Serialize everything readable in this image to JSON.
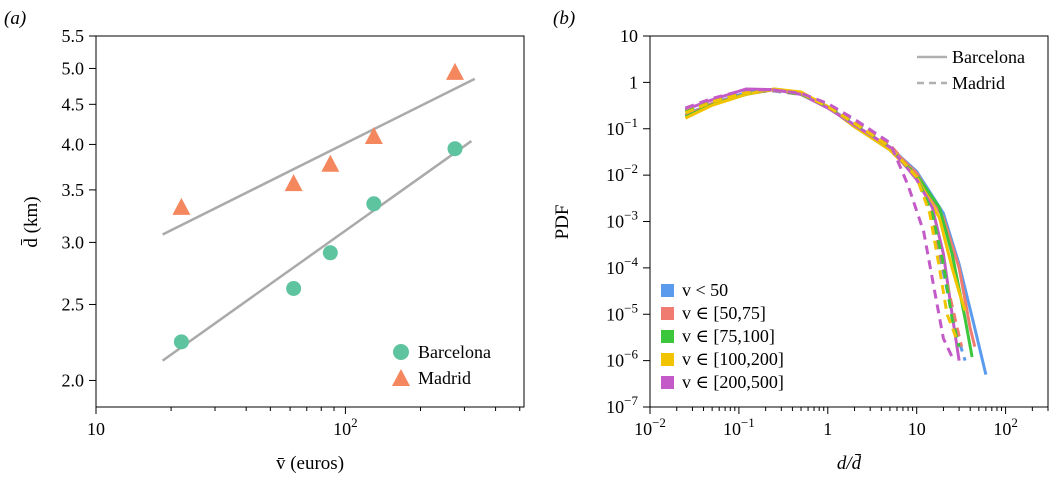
{
  "chart_data": [
    {
      "panel_label": "(a)",
      "type": "scatter",
      "xlabel": "v̄ (euros)",
      "ylabel": "d̄ (km)",
      "xscale": "log",
      "yscale": "log",
      "xlim": [
        10,
        520
      ],
      "ylim": [
        1.85,
        5.5
      ],
      "xticks": [
        10,
        100
      ],
      "xticklabels": [
        "10",
        "10²"
      ],
      "yticks": [
        2.0,
        2.5,
        3.0,
        3.5,
        4.0,
        4.5,
        5.0,
        5.5
      ],
      "yticklabels": [
        "2.0",
        "2.5",
        "3.0",
        "3.5",
        "4.0",
        "4.5",
        "5.0",
        "5.5"
      ],
      "legend_position": "bottom-right",
      "series": [
        {
          "name": "Barcelona",
          "marker": "circle",
          "color": "#5ec4a0",
          "x": [
            22,
            62,
            87,
            130,
            275
          ],
          "y": [
            2.24,
            2.62,
            2.91,
            3.36,
            3.95
          ],
          "fit_x": [
            18.5,
            320
          ],
          "fit_y": [
            2.12,
            4.04
          ]
        },
        {
          "name": "Madrid",
          "marker": "triangle",
          "color": "#f5875e",
          "x": [
            22,
            62,
            87,
            130,
            275
          ],
          "y": [
            3.33,
            3.57,
            3.78,
            4.1,
            4.95
          ],
          "fit_x": [
            18.5,
            330
          ],
          "fit_y": [
            3.07,
            4.85
          ]
        }
      ],
      "fit_color": "#aaaaaa"
    },
    {
      "panel_label": "(b)",
      "type": "line",
      "xlabel": "d/d̄",
      "ylabel": "PDF",
      "xscale": "log",
      "yscale": "log",
      "xlim": [
        0.01,
        300
      ],
      "ylim": [
        1e-07,
        10
      ],
      "xtick_labels": [
        {
          "value": 0.01,
          "base": "10",
          "exp": "−2"
        },
        {
          "value": 0.1,
          "base": "10",
          "exp": "−1"
        },
        {
          "value": 1,
          "base": "1",
          "exp": ""
        },
        {
          "value": 10,
          "base": "10",
          "exp": ""
        },
        {
          "value": 100,
          "base": "10",
          "exp": "2"
        }
      ],
      "ytick_labels": [
        {
          "value": 10,
          "base": "10",
          "exp": ""
        },
        {
          "value": 1,
          "base": "1",
          "exp": ""
        },
        {
          "value": 0.1,
          "base": "10",
          "exp": "−1"
        },
        {
          "value": 0.01,
          "base": "10",
          "exp": "−2"
        },
        {
          "value": 0.001,
          "base": "10",
          "exp": "−3"
        },
        {
          "value": 0.0001,
          "base": "10",
          "exp": "−4"
        },
        {
          "value": 1e-05,
          "base": "10",
          "exp": "−5"
        },
        {
          "value": 1e-06,
          "base": "10",
          "exp": "−6"
        },
        {
          "value": 1e-07,
          "base": "10",
          "exp": "−7"
        }
      ],
      "style_legend": [
        {
          "name": "Barcelona",
          "dash": "solid"
        },
        {
          "name": "Madrid",
          "dash": "dashed"
        }
      ],
      "color_legend_position": "bottom-left",
      "style_legend_position": "top-right",
      "series": [
        {
          "name": "v < 50",
          "color": "#5b9bed",
          "barcelona": {
            "x": [
              0.025,
              0.05,
              0.12,
              0.25,
              0.5,
              1,
              2,
              5,
              10,
              20,
              30,
              45,
              60
            ],
            "y": [
              0.2,
              0.35,
              0.6,
              0.7,
              0.55,
              0.3,
              0.12,
              0.04,
              0.012,
              0.0015,
              0.00012,
              5e-06,
              5e-07
            ]
          },
          "madrid": {
            "x": [
              0.025,
              0.05,
              0.12,
              0.25,
              0.5,
              1,
              2,
              5,
              10,
              15,
              20,
              27,
              35
            ],
            "y": [
              0.25,
              0.4,
              0.65,
              0.65,
              0.55,
              0.32,
              0.15,
              0.045,
              0.009,
              0.0012,
              8e-05,
              5e-06,
              1e-06
            ]
          }
        },
        {
          "name": "v ∈ [50,75]",
          "color": "#f07b70",
          "barcelona": {
            "x": [
              0.025,
              0.05,
              0.12,
              0.25,
              0.5,
              1,
              2,
              5,
              10,
              20,
              30,
              40,
              45
            ],
            "y": [
              0.19,
              0.35,
              0.55,
              0.7,
              0.6,
              0.3,
              0.11,
              0.04,
              0.011,
              0.0012,
              0.0001,
              5e-06,
              2e-06
            ]
          },
          "madrid": {
            "x": [
              0.025,
              0.05,
              0.12,
              0.25,
              0.5,
              1,
              2,
              5,
              10,
              15,
              20,
              28,
              32
            ],
            "y": [
              0.24,
              0.4,
              0.62,
              0.66,
              0.55,
              0.31,
              0.14,
              0.045,
              0.01,
              0.0013,
              0.0001,
              6e-06,
              2e-06
            ]
          }
        },
        {
          "name": "v ∈ [75,100]",
          "color": "#3cc63c",
          "barcelona": {
            "x": [
              0.025,
              0.05,
              0.12,
              0.25,
              0.5,
              1,
              2,
              5,
              10,
              18,
              25,
              35,
              42
            ],
            "y": [
              0.18,
              0.33,
              0.55,
              0.72,
              0.6,
              0.3,
              0.11,
              0.035,
              0.01,
              0.002,
              0.0002,
              8e-06,
              1.2e-06
            ]
          },
          "madrid": {
            "x": [
              0.025,
              0.05,
              0.12,
              0.25,
              0.5,
              1,
              2,
              5,
              10,
              15,
              20,
              25,
              30
            ],
            "y": [
              0.23,
              0.38,
              0.6,
              0.68,
              0.56,
              0.3,
              0.13,
              0.04,
              0.009,
              0.0015,
              0.00012,
              8e-06,
              2e-06
            ]
          }
        },
        {
          "name": "v ∈ [100,200]",
          "color": "#f2c400",
          "barcelona": {
            "x": [
              0.025,
              0.05,
              0.12,
              0.25,
              0.5,
              1,
              2,
              5,
              10,
              18,
              25,
              30,
              35
            ],
            "y": [
              0.17,
              0.32,
              0.55,
              0.72,
              0.62,
              0.3,
              0.11,
              0.035,
              0.009,
              0.0012,
              0.0001,
              3e-05,
              1.2e-05
            ]
          },
          "madrid": {
            "x": [
              0.025,
              0.05,
              0.12,
              0.25,
              0.5,
              1,
              2,
              5,
              10,
              14,
              18,
              22,
              28
            ],
            "y": [
              0.22,
              0.38,
              0.6,
              0.7,
              0.58,
              0.3,
              0.13,
              0.04,
              0.009,
              0.0015,
              0.0001,
              1e-05,
              3e-06
            ]
          }
        },
        {
          "name": "v ∈ [200,500]",
          "color": "#c45ac8",
          "barcelona": {
            "x": [
              0.025,
              0.05,
              0.12,
              0.25,
              0.5,
              1,
              2,
              5,
              10,
              15,
              20,
              25,
              30
            ],
            "y": [
              0.26,
              0.42,
              0.72,
              0.7,
              0.55,
              0.28,
              0.12,
              0.04,
              0.008,
              0.002,
              0.0002,
              1e-05,
              1e-06
            ]
          },
          "madrid": {
            "x": [
              0.025,
              0.05,
              0.12,
              0.25,
              0.5,
              1,
              2,
              5,
              8,
              12,
              16,
              20,
              25
            ],
            "y": [
              0.28,
              0.45,
              0.7,
              0.68,
              0.58,
              0.35,
              0.16,
              0.05,
              0.006,
              0.0006,
              3e-05,
              3e-06,
              1.2e-06
            ]
          }
        }
      ],
      "legend_labels": {
        "v50": "v < 50",
        "v75": "v ∈ [50,75]",
        "v100": "v ∈ [75,100]",
        "v200": "v ∈ [100,200]",
        "v500": "v ∈ [200,500]"
      }
    }
  ]
}
